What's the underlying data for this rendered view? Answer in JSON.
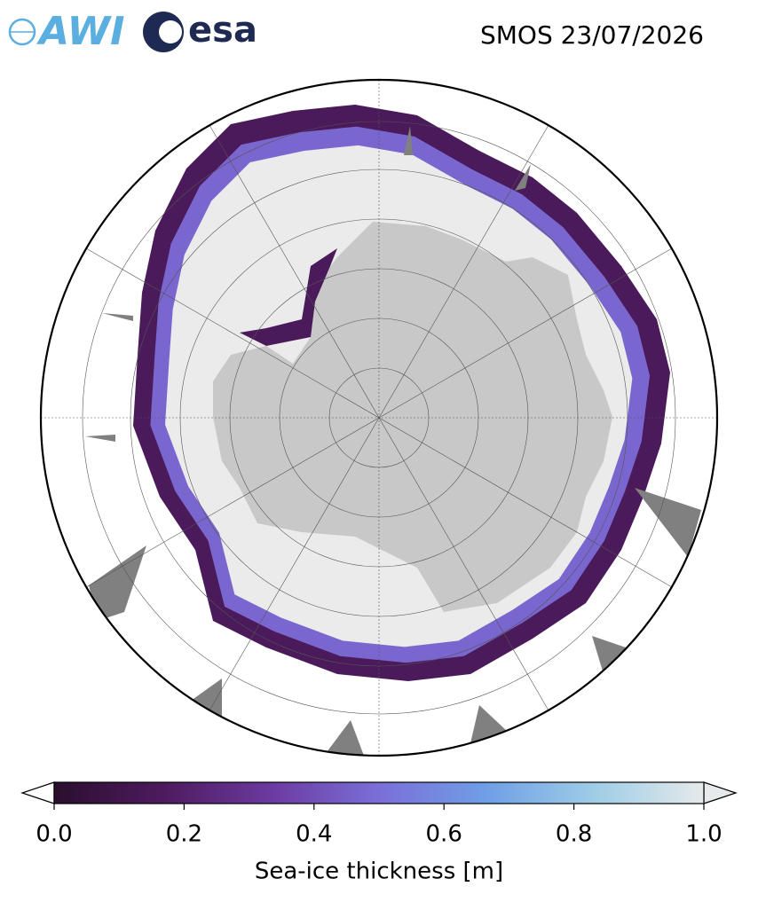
{
  "header": {
    "logos": [
      "AWI",
      "esa"
    ],
    "title": "SMOS 23/07/2026"
  },
  "colorbar": {
    "label": "Sea-ice thickness [m]",
    "lim": [
      0,
      1
    ],
    "ticks": [
      {
        "value": 0,
        "label": "0.0"
      },
      {
        "value": 0.2,
        "label": "0.2"
      },
      {
        "value": 0.4,
        "label": "0.4"
      },
      {
        "value": 0.6,
        "label": "0.6"
      },
      {
        "value": 0.8,
        "label": "0.8"
      },
      {
        "value": 1,
        "label": "1.0"
      }
    ],
    "colors": [
      "#2a0f2e",
      "#4e1a5e",
      "#6b3aa0",
      "#7a6fd8",
      "#6f9fe6",
      "#9fcde6",
      "#e6eaea"
    ]
  }
}
